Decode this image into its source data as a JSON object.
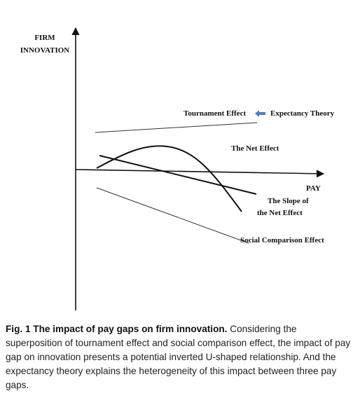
{
  "figure": {
    "y_axis_label_line1": "FIRM",
    "y_axis_label_line2": "INNOVATION",
    "x_axis_label": "PAY",
    "tournament_effect_label": "Tournament Effect",
    "expectancy_theory_label": "Expectancy Theory",
    "net_effect_label": "The Net Effect",
    "slope_label_line1": "The Slope of",
    "slope_label_line2": "the Net Effect",
    "social_comparison_label": "Social Comparison Effect",
    "arrow_color": "#4a7fd1",
    "line_color": "#111111"
  },
  "caption": {
    "title": "Fig. 1 The impact of pay gaps on firm innovation.",
    "body": " Considering the superposition of tournament effect and social comparison effect, the impact of pay gap on innovation presents a potential inverted U-shaped relationship. And the expectancy theory explains the heterogeneity of this impact between three pay gaps."
  }
}
